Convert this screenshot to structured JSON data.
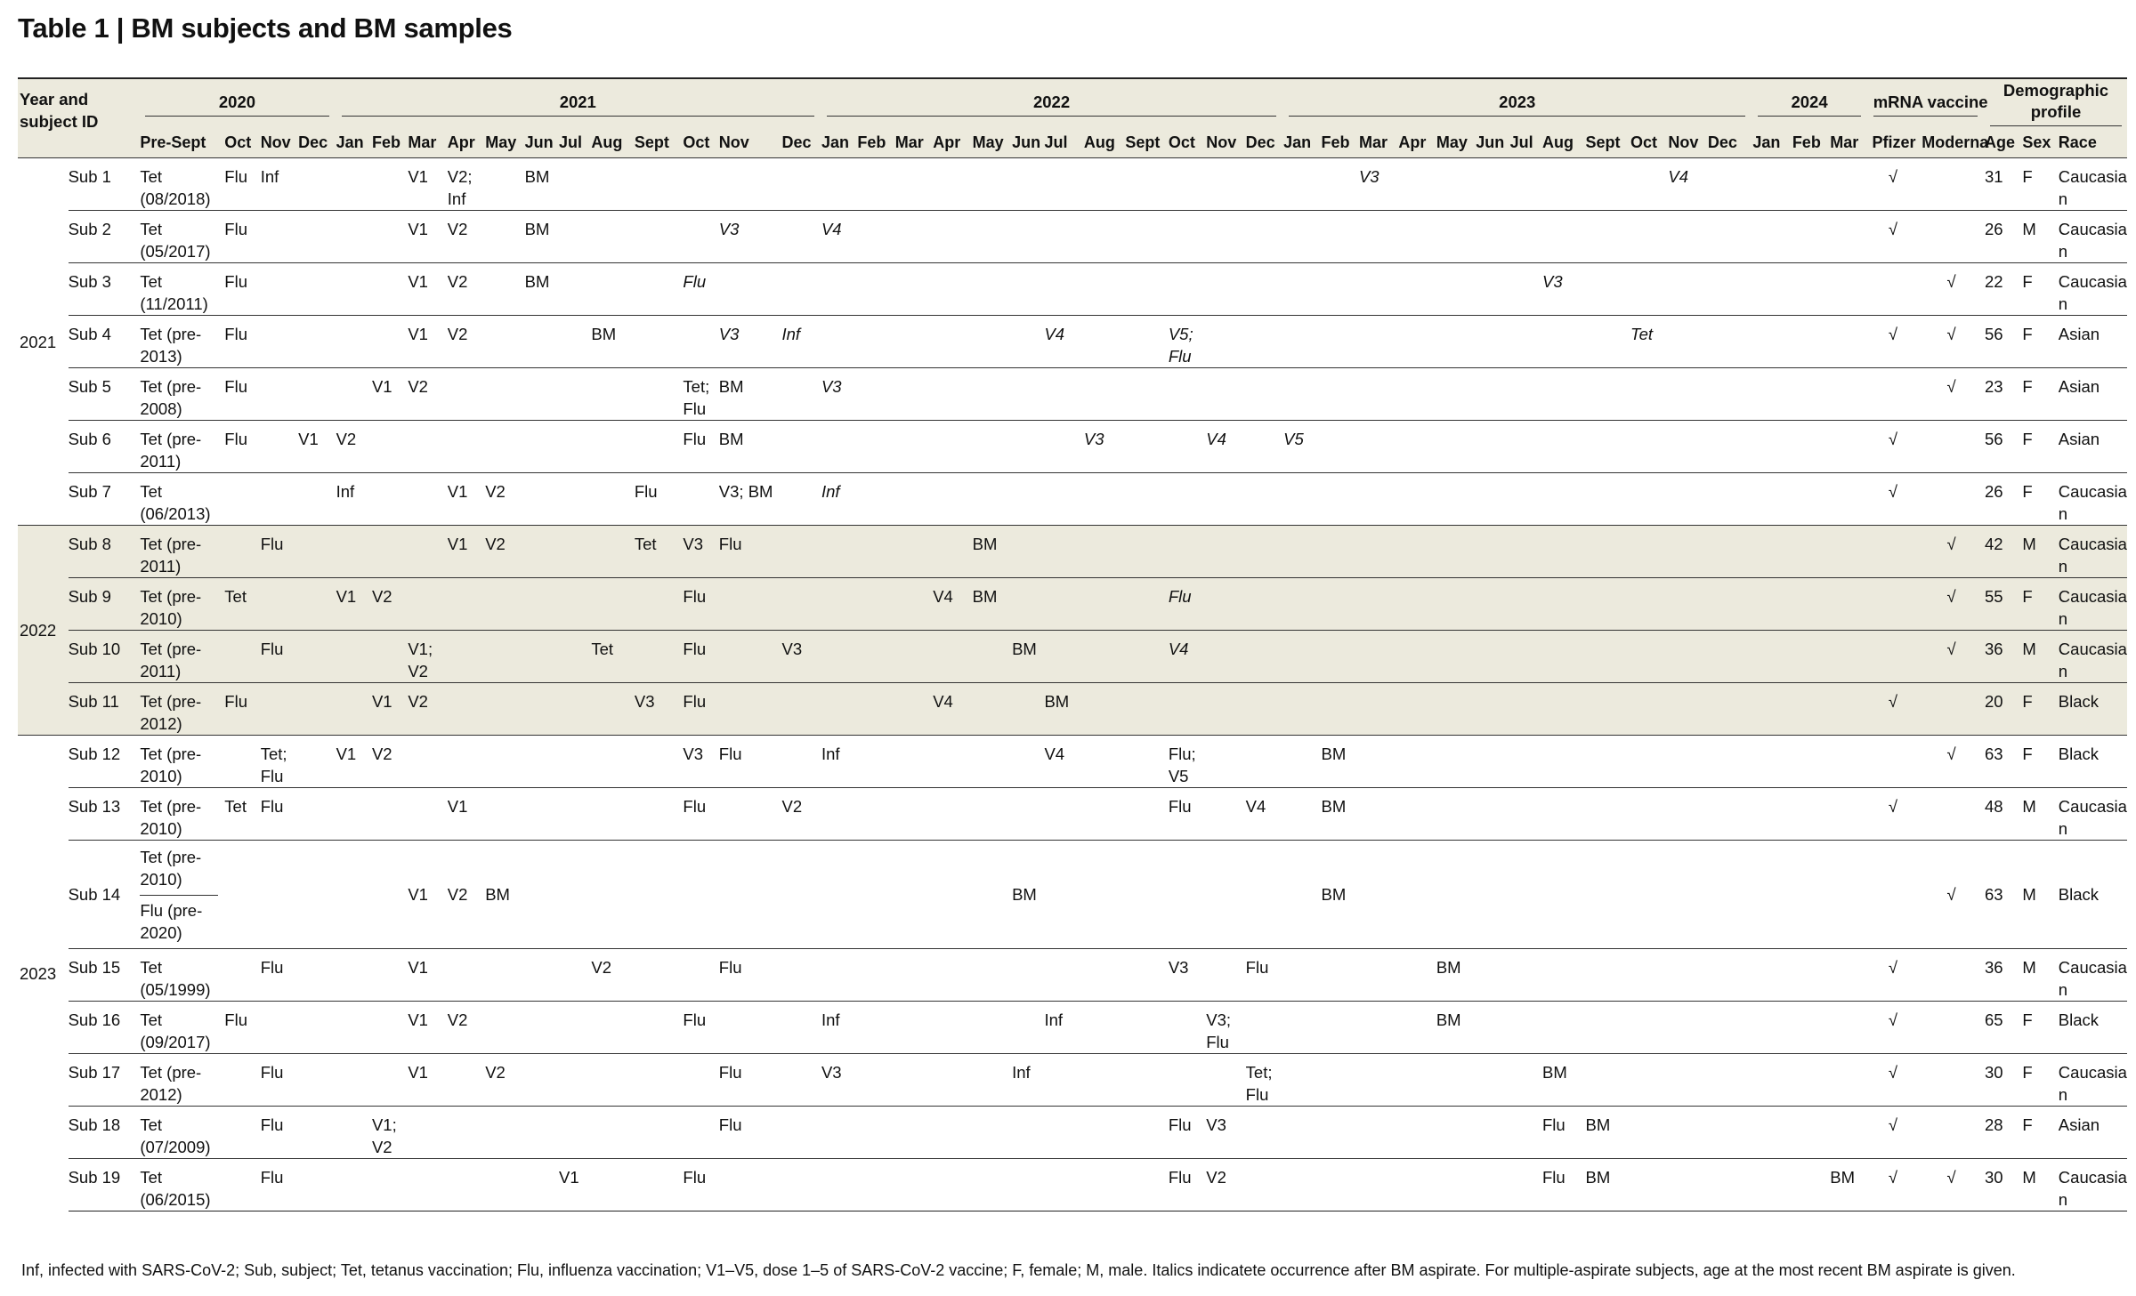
{
  "title": "Table 1 | BM subjects and BM samples",
  "header": {
    "year_subject_label": "Year and subject ID",
    "groups": [
      {
        "label": "2020",
        "months": [
          "Pre-Sept",
          "Oct",
          "Nov",
          "Dec"
        ]
      },
      {
        "label": "2021",
        "months": [
          "Jan",
          "Feb",
          "Mar",
          "Apr",
          "May",
          "Jun",
          "Jul",
          "Aug",
          "Sept",
          "Oct",
          "Nov",
          "Dec"
        ]
      },
      {
        "label": "2022",
        "months": [
          "Jan",
          "Feb",
          "Mar",
          "Apr",
          "May",
          "Jun",
          "Jul",
          "Aug",
          "Sept",
          "Oct",
          "Nov",
          "Dec"
        ]
      },
      {
        "label": "2023",
        "months": [
          "Jan",
          "Feb",
          "Mar",
          "Apr",
          "May",
          "Jun",
          "Jul",
          "Aug",
          "Sept",
          "Oct",
          "Nov",
          "Dec"
        ]
      },
      {
        "label": "2024",
        "months": [
          "Jan",
          "Feb",
          "Mar"
        ]
      },
      {
        "label": "mRNA vaccine",
        "months": [
          "Pfizer",
          "Moderna"
        ]
      },
      {
        "label": "Demographic profile",
        "months": [
          "Age",
          "Sex",
          "Race"
        ]
      }
    ]
  },
  "year_groups": [
    {
      "year": "2021",
      "shaded": false,
      "rows": [
        {
          "id": "Sub 1",
          "pre": "Tet (08/2018)",
          "cells": {
            "1": "Flu",
            "2": "Inf",
            "6": "V1",
            "7": "V2; Inf",
            "9": "BM",
            "30": {
              "t": "V3",
              "i": true
            },
            "38": {
              "t": "V4",
              "i": true
            }
          },
          "pfizer": "√",
          "moderna": "",
          "age": "31",
          "sex": "F",
          "race": "Caucasian"
        },
        {
          "id": "Sub 2",
          "pre": "Tet (05/2017)",
          "cells": {
            "1": "Flu",
            "6": "V1",
            "7": "V2",
            "9": "BM",
            "14": {
              "t": "V3",
              "i": true
            },
            "16": {
              "t": "V4",
              "i": true
            }
          },
          "pfizer": "√",
          "moderna": "",
          "age": "26",
          "sex": "M",
          "race": "Caucasian"
        },
        {
          "id": "Sub 3",
          "pre": "Tet (11/2011)",
          "cells": {
            "1": "Flu",
            "6": "V1",
            "7": "V2",
            "9": "BM",
            "13": {
              "t": "Flu",
              "i": true
            },
            "35": {
              "t": "V3",
              "i": true
            }
          },
          "pfizer": "",
          "moderna": "√",
          "age": "22",
          "sex": "F",
          "race": "Caucasian"
        },
        {
          "id": "Sub 4",
          "pre": "Tet (pre-2013)",
          "cells": {
            "1": "Flu",
            "6": "V1",
            "7": "V2",
            "11": "BM",
            "14": {
              "t": "V3",
              "i": true
            },
            "15": {
              "t": "Inf",
              "i": true
            },
            "22": {
              "t": "V4",
              "i": true
            },
            "25": {
              "t": "V5; Flu",
              "i": true
            },
            "37": {
              "t": "Tet",
              "i": true
            }
          },
          "pfizer": "√",
          "moderna": "√",
          "age": "56",
          "sex": "F",
          "race": "Asian"
        },
        {
          "id": "Sub 5",
          "pre": "Tet (pre-2008)",
          "cells": {
            "1": "Flu",
            "5": "V1",
            "6": "V2",
            "13": "Tet; Flu",
            "14": "BM",
            "16": {
              "t": "V3",
              "i": true
            }
          },
          "pfizer": "",
          "moderna": "√",
          "age": "23",
          "sex": "F",
          "race": "Asian"
        },
        {
          "id": "Sub 6",
          "pre": "Tet (pre-2011)",
          "cells": {
            "1": "Flu",
            "3": "V1",
            "4": "V2",
            "13": "Flu",
            "14": "BM",
            "23": {
              "t": "V3",
              "i": true
            },
            "26": {
              "t": "V4",
              "i": true
            },
            "28": {
              "t": "V5",
              "i": true
            }
          },
          "pfizer": "√",
          "moderna": "",
          "age": "56",
          "sex": "F",
          "race": "Asian"
        },
        {
          "id": "Sub 7",
          "pre": "Tet (06/2013)",
          "cells": {
            "4": "Inf",
            "7": "V1",
            "8": "V2",
            "12": "Flu",
            "14": "V3; BM",
            "16": {
              "t": "Inf",
              "i": true
            }
          },
          "pfizer": "√",
          "moderna": "",
          "age": "26",
          "sex": "F",
          "race": "Caucasian"
        }
      ]
    },
    {
      "year": "2022",
      "shaded": true,
      "rows": [
        {
          "id": "Sub 8",
          "pre": "Tet (pre-2011)",
          "cells": {
            "2": "Flu",
            "7": "V1",
            "8": "V2",
            "12": "Tet",
            "13": "V3",
            "14": "Flu",
            "20": "BM"
          },
          "pfizer": "",
          "moderna": "√",
          "age": "42",
          "sex": "M",
          "race": "Caucasian"
        },
        {
          "id": "Sub 9",
          "pre": "Tet (pre-2010)",
          "cells": {
            "1": "Tet",
            "4": "V1",
            "5": "V2",
            "13": "Flu",
            "19": "V4",
            "20": "BM",
            "25": {
              "t": "Flu",
              "i": true
            }
          },
          "pfizer": "",
          "moderna": "√",
          "age": "55",
          "sex": "F",
          "race": "Caucasian"
        },
        {
          "id": "Sub 10",
          "pre": "Tet (pre-2011)",
          "cells": {
            "2": "Flu",
            "6": "V1; V2",
            "11": "Tet",
            "13": "Flu",
            "15": "V3",
            "21": "BM",
            "25": {
              "t": "V4",
              "i": true
            }
          },
          "pfizer": "",
          "moderna": "√",
          "age": "36",
          "sex": "M",
          "race": "Caucasian"
        },
        {
          "id": "Sub 11",
          "pre": "Tet (pre-2012)",
          "cells": {
            "1": "Flu",
            "5": "V1",
            "6": "V2",
            "12": "V3",
            "13": "Flu",
            "19": "V4",
            "22": "BM"
          },
          "pfizer": "√",
          "moderna": "",
          "age": "20",
          "sex": "F",
          "race": "Black"
        }
      ]
    },
    {
      "year": "2023",
      "shaded": false,
      "rows": [
        {
          "id": "Sub 12",
          "pre": "Tet (pre-2010)",
          "cells": {
            "2": "Tet; Flu",
            "4": "V1",
            "5": "V2",
            "13": "V3",
            "14": "Flu",
            "16": "Inf",
            "22": "V4",
            "25": "Flu; V5",
            "29": "BM"
          },
          "pfizer": "",
          "moderna": "√",
          "age": "63",
          "sex": "F",
          "race": "Black"
        },
        {
          "id": "Sub 13",
          "pre": "Tet (pre-2010)",
          "cells": {
            "1": "Tet",
            "2": "Flu",
            "7": "V1",
            "13": "Flu",
            "15": "V2",
            "25": "Flu",
            "27": "V4",
            "29": "BM"
          },
          "pfizer": "√",
          "moderna": "",
          "age": "48",
          "sex": "M",
          "race": "Caucasian"
        },
        {
          "id": "Sub 14",
          "pre": "Tet (pre-2010)",
          "pre2": "Flu (pre-2020)",
          "tall": true,
          "cells": {
            "6": "V1",
            "7": "V2",
            "8": "BM",
            "21": "BM",
            "29": "BM"
          },
          "pfizer": "",
          "moderna": "√",
          "age": "63",
          "sex": "M",
          "race": "Black"
        },
        {
          "id": "Sub 15",
          "pre": "Tet (05/1999)",
          "cells": {
            "2": "Flu",
            "6": "V1",
            "11": "V2",
            "14": "Flu",
            "25": "V3",
            "27": "Flu",
            "32": "BM"
          },
          "pfizer": "√",
          "moderna": "",
          "age": "36",
          "sex": "M",
          "race": "Caucasian"
        },
        {
          "id": "Sub 16",
          "pre": "Tet (09/2017)",
          "cells": {
            "1": "Flu",
            "6": "V1",
            "7": "V2",
            "13": "Flu",
            "16": "Inf",
            "22": "Inf",
            "26": "V3; Flu",
            "32": "BM"
          },
          "pfizer": "√",
          "moderna": "",
          "age": "65",
          "sex": "F",
          "race": "Black"
        },
        {
          "id": "Sub 17",
          "pre": "Tet (pre-2012)",
          "cells": {
            "2": "Flu",
            "6": "V1",
            "8": "V2",
            "14": "Flu",
            "16": "V3",
            "21": "Inf",
            "27": "Tet; Flu",
            "35": "BM"
          },
          "pfizer": "√",
          "moderna": "",
          "age": "30",
          "sex": "F",
          "race": "Caucasian"
        },
        {
          "id": "Sub 18",
          "pre": "Tet (07/2009)",
          "cells": {
            "2": "Flu",
            "5": "V1; V2",
            "14": "Flu",
            "25": "Flu",
            "26": "V3",
            "35": "Flu",
            "36": "BM"
          },
          "pfizer": "√",
          "moderna": "",
          "age": "28",
          "sex": "F",
          "race": "Asian"
        },
        {
          "id": "Sub 19",
          "pre": "Tet (06/2015)",
          "cells": {
            "2": "Flu",
            "10": "V1",
            "13": "Flu",
            "25": "Flu",
            "26": "V2",
            "35": "Flu",
            "36": "BM",
            "42": "BM"
          },
          "pfizer": "√",
          "moderna": "√",
          "age": "30",
          "sex": "M",
          "race": "Caucasian"
        }
      ]
    }
  ],
  "footnote": "Inf, infected with SARS-CoV-2; Sub, subject; Tet, tetanus vaccination; Flu, influenza vaccination; V1–V5, dose 1–5 of SARS-CoV-2 vaccine; F, female; M, male. Italics indicatete occurrence after BM aspirate. For multiple-aspirate subjects, age at the most recent BM aspirate is given."
}
